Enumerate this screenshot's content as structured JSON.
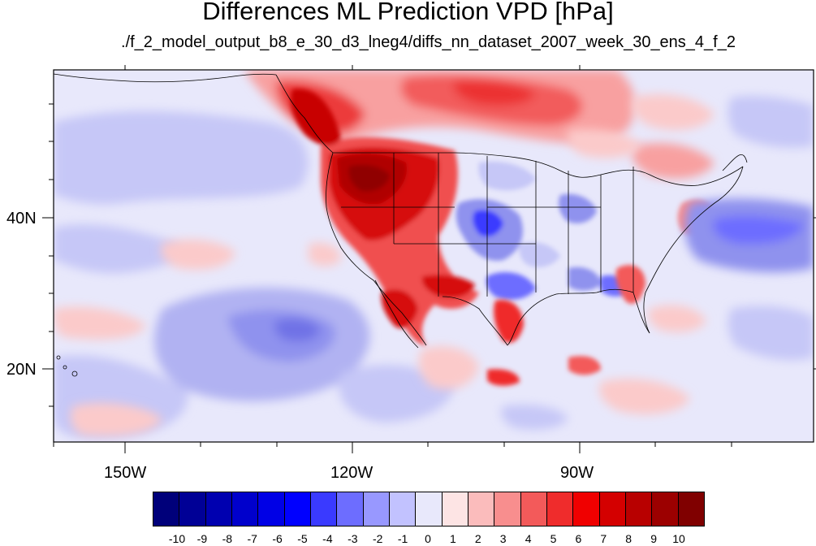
{
  "title": "Differences ML Prediction VPD [hPa]",
  "subtitle": "./f_2_model_output_b8_e_30_d3_lneg4/diffs_nn_dataset_2007_week_30_ens_4_f_2",
  "axes": {
    "lat_labels": [
      "40N",
      "20N"
    ],
    "lon_labels": [
      "150W",
      "120W",
      "90W"
    ]
  },
  "colorbar": {
    "labels": [
      "-10",
      "-9",
      "-8",
      "-7",
      "-6",
      "-5",
      "-4",
      "-3",
      "-2",
      "-1",
      "0",
      "1",
      "2",
      "3",
      "4",
      "5",
      "6",
      "7",
      "8",
      "9",
      "10"
    ],
    "colors": [
      "#00007a",
      "#000096",
      "#0000b0",
      "#0000cc",
      "#0000e6",
      "#0000ff",
      "#3a3aff",
      "#6d6dff",
      "#9898ff",
      "#c2c2ff",
      "#e8e8fb",
      "#fde4e4",
      "#fbbcbc",
      "#f88e8e",
      "#f35a5a",
      "#ef2c2c",
      "#f00000",
      "#d40000",
      "#b80000",
      "#9c0000",
      "#800000"
    ]
  },
  "map": {
    "ocean_color": "#e4e6fa",
    "border_color": "#000000"
  }
}
